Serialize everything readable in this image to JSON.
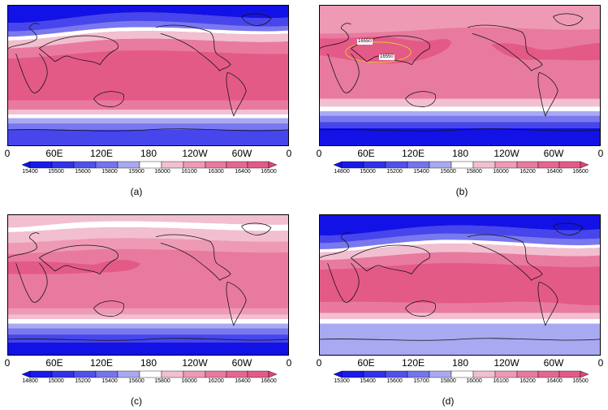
{
  "x_ticks": [
    "0",
    "60E",
    "120E",
    "180",
    "120W",
    "60W",
    "0"
  ],
  "colors": {
    "blue_dark": "#1212e6",
    "blue_mid": "#4646ec",
    "blue_light": "#7878f0",
    "lavender": "#a9a9f2",
    "white": "#ffffff",
    "pink_pale": "#f2bfd0",
    "pink_light": "#ee9ab5",
    "pink_mid": "#e97a9f",
    "pink_dark": "#e45a87",
    "coast": "#111111",
    "contour_yellow": "#e8c23a"
  },
  "panels": [
    {
      "label": "(a)",
      "colorbar_levels": [
        "15400",
        "15500",
        "15600",
        "15800",
        "15900",
        "16000",
        "16100",
        "16300",
        "16400",
        "16500"
      ]
    },
    {
      "label": "(b)",
      "colorbar_levels": [
        "14800",
        "15000",
        "15200",
        "15400",
        "15600",
        "15800",
        "16000",
        "16200",
        "16400",
        "16600"
      ],
      "contour_labels": [
        "16550",
        "16550"
      ]
    },
    {
      "label": "(c)",
      "colorbar_levels": [
        "14800",
        "15000",
        "15200",
        "15400",
        "15600",
        "15800",
        "16000",
        "16200",
        "16400",
        "16600"
      ]
    },
    {
      "label": "(d)",
      "colorbar_levels": [
        "15300",
        "15400",
        "15600",
        "15700",
        "15800",
        "16000",
        "16100",
        "16200",
        "16400",
        "16500"
      ]
    }
  ]
}
